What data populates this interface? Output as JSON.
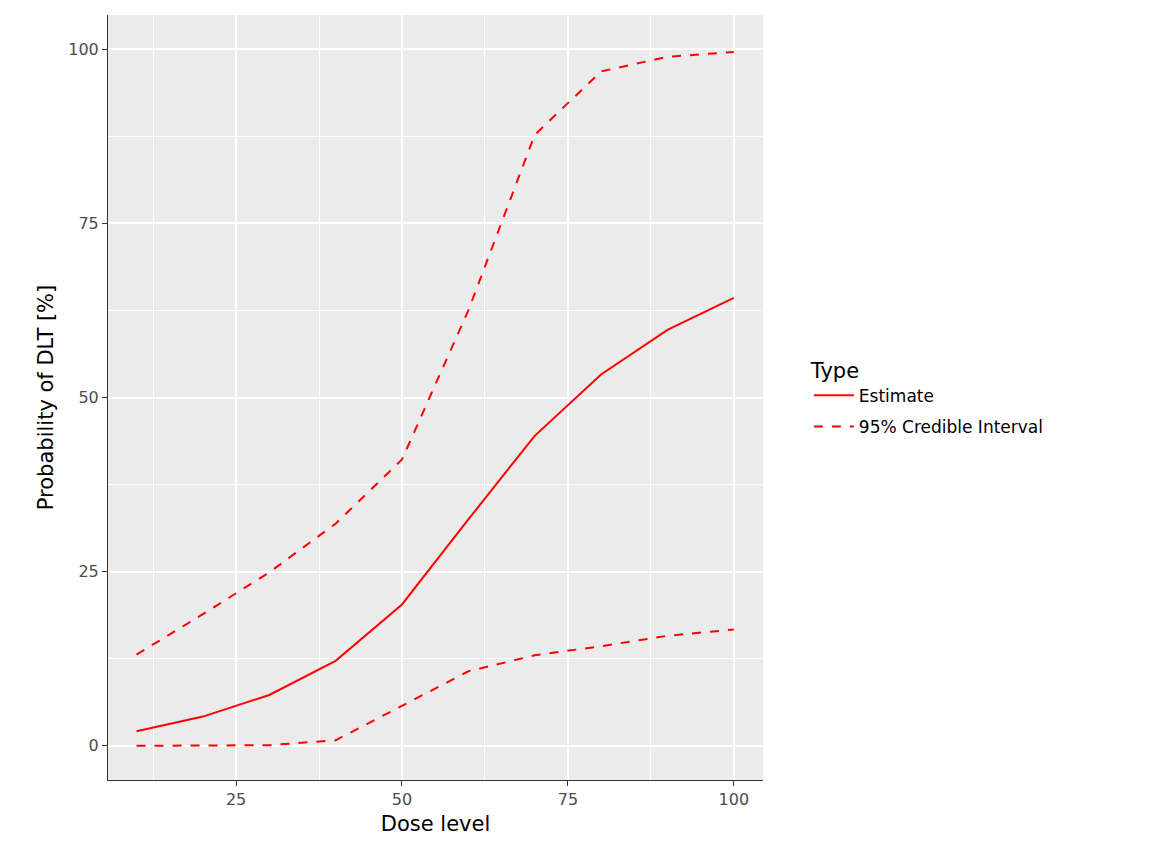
{
  "chart_data": {
    "type": "line",
    "x_label": "Dose level",
    "y_label": "Probability of DLT [%]",
    "legend_title": "Type",
    "legend": "right",
    "grid": true,
    "x": [
      10,
      20,
      30,
      40,
      50,
      60,
      70,
      80,
      90,
      100
    ],
    "series": [
      {
        "name": "Estimate",
        "color": "#ff0000",
        "line_style": "solid",
        "values": [
          2.1,
          4.2,
          7.3,
          12.2,
          20.3,
          32.5,
          44.5,
          53.3,
          59.7,
          64.3
        ]
      },
      {
        "name": "95% Credible Interval",
        "color": "#ff0000",
        "line_style": "dashed",
        "lower": [
          0.0,
          0.0,
          0.1,
          0.8,
          5.8,
          10.7,
          13.0,
          14.3,
          15.8,
          16.7
        ],
        "upper": [
          13.1,
          18.9,
          24.9,
          31.9,
          41.1,
          62.5,
          87.7,
          96.8,
          98.9,
          99.6
        ]
      }
    ],
    "xlim": [
      5.7,
      104.4
    ],
    "xticks": [
      25,
      50,
      75,
      100
    ],
    "ylim": [
      -4.9,
      104.9
    ],
    "yticks": [
      0,
      25,
      50,
      75,
      100
    ]
  }
}
